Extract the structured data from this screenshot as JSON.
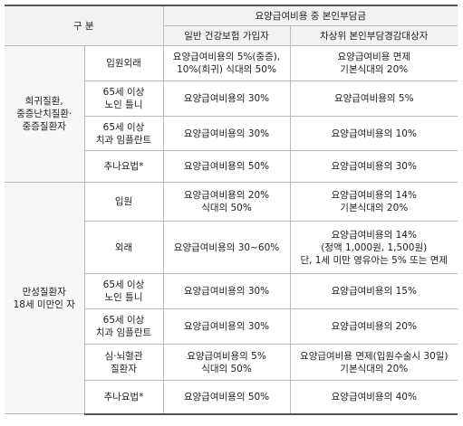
{
  "table": {
    "header": {
      "corner": "구 분",
      "group": "요양급여비용 중 본인부담금",
      "columns": [
        "일반 건강보험 가입자",
        "차상위 본인부담경감대상자"
      ]
    },
    "groups": [
      {
        "label": [
          "희귀질환,",
          "중증난치질환·",
          "중증질환자"
        ],
        "rows": [
          {
            "item": [
              "입원외래"
            ],
            "general": [
              "요양급여비용의 5%(중증),",
              "10%(희귀) 식대의 50%"
            ],
            "low_income": [
              "요양급여비용 면제",
              "기본식대의 20%"
            ]
          },
          {
            "item": [
              "65세 이상",
              "노인 틀니"
            ],
            "general": [
              "요양급여비용의 30%"
            ],
            "low_income": [
              "요양급여비용의 5%"
            ]
          },
          {
            "item": [
              "65세 이상",
              "치과 임플란트"
            ],
            "general": [
              "요양급여비용의 30%"
            ],
            "low_income": [
              "요양급여비용의 10%"
            ]
          },
          {
            "item": [
              "추나요법*"
            ],
            "general": [
              "요양급여비용의 50%"
            ],
            "low_income": [
              "요양급여비용의 30%"
            ]
          }
        ]
      },
      {
        "label": [
          "만성질환자",
          "18세 미만인 자"
        ],
        "rows": [
          {
            "item": [
              "입원"
            ],
            "general": [
              "요양급여비용의 20%",
              "식대의 50%"
            ],
            "low_income": [
              "요양급여비용의 14%",
              "기본식대의 20%"
            ]
          },
          {
            "item": [
              "외래"
            ],
            "general": [
              "요양급여비용의 30~60%"
            ],
            "low_income": [
              "요양급여비용의 14%",
              "(정액 1,000원, 1,500원)",
              "단, 1세 미만 영유아는 5% 또는 면제"
            ]
          },
          {
            "item": [
              "65세 이상",
              "노인 틀니"
            ],
            "general": [
              "요양급여비용의 30%"
            ],
            "low_income": [
              "요양급여비용의 15%"
            ]
          },
          {
            "item": [
              "65세 이상",
              "치과 임플란트"
            ],
            "general": [
              "요양급여비용의 30%"
            ],
            "low_income": [
              "요양급여비용의 20%"
            ]
          },
          {
            "item": [
              "심·뇌혈관",
              "질환자"
            ],
            "general": [
              "요양급여비용의 5%",
              "식대의 50%"
            ],
            "low_income": [
              "요양급여비용 면제(입원수술시 30일)",
              "기본식대의 20%"
            ]
          },
          {
            "item": [
              "추나요법*"
            ],
            "general": [
              "요양급여비용의 50%"
            ],
            "low_income": [
              "요양급여비용의 40%"
            ]
          }
        ]
      }
    ]
  }
}
